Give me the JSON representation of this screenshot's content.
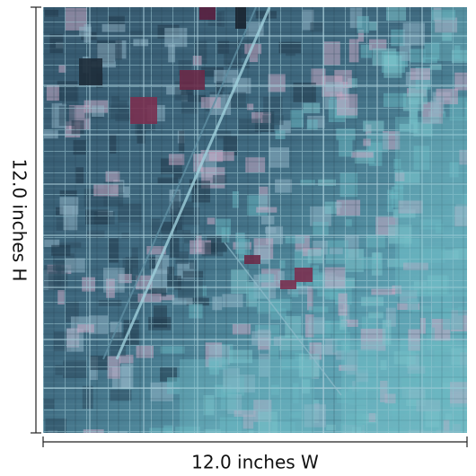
{
  "dimensions": {
    "height_label": "12.0 inches H",
    "width_label": "12.0 inches W"
  }
}
